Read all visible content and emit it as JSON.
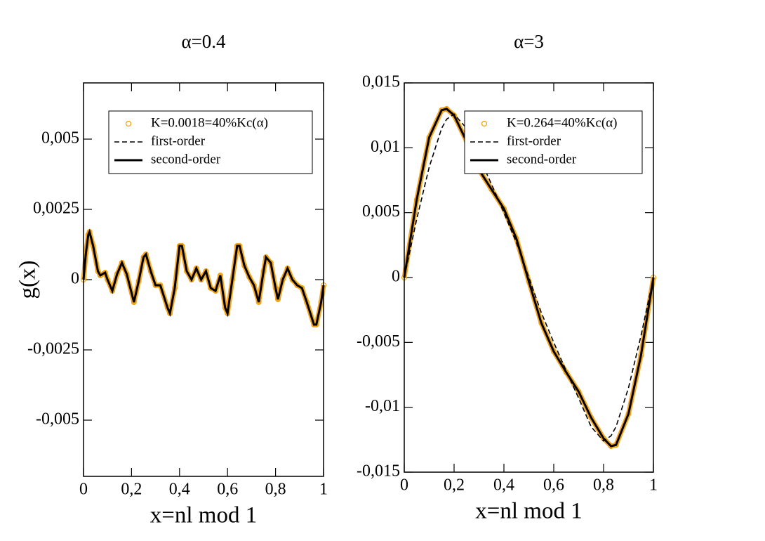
{
  "chart_data": [
    {
      "type": "line",
      "title": "α=0.4",
      "xlabel": "x=nl mod 1",
      "ylabel": "g(x)",
      "legend": "upper right",
      "x": [
        0,
        0.01,
        0.02,
        0.025,
        0.04,
        0.06,
        0.07,
        0.09,
        0.1,
        0.12,
        0.14,
        0.16,
        0.18,
        0.21,
        0.23,
        0.25,
        0.26,
        0.28,
        0.3,
        0.32,
        0.35,
        0.36,
        0.38,
        0.4,
        0.41,
        0.43,
        0.45,
        0.47,
        0.49,
        0.51,
        0.53,
        0.55,
        0.57,
        0.59,
        0.6,
        0.62,
        0.64,
        0.65,
        0.67,
        0.69,
        0.71,
        0.73,
        0.75,
        0.76,
        0.78,
        0.8,
        0.81,
        0.83,
        0.85,
        0.87,
        0.89,
        0.91,
        0.93,
        0.96,
        0.97,
        0.99,
        1
      ],
      "series": [
        {
          "name": "K=0.0018=40%Kc(α)",
          "color": "#f5a623",
          "style": "circle",
          "values": [
            0,
            0.00095,
            0.0016,
            0.0017,
            0.0012,
            0.0003,
            0.00015,
            0.00025,
            0,
            -0.0004,
            0.0002,
            0.0006,
            0.0002,
            -0.0008,
            -5e-05,
            0.0008,
            0.0009,
            0.0003,
            -0.0002,
            -0.0002,
            -0.001,
            -0.0012,
            -0.0003,
            0.0012,
            0.0012,
            0.0003,
            0,
            0.0004,
            0,
            0.0003,
            -0.0003,
            -0.0004,
            0.00015,
            -0.001,
            -0.0012,
            0,
            0.0012,
            0.0012,
            0.0005,
            0.0001,
            -0.0002,
            -0.0008,
            0.0003,
            0.0008,
            0.0006,
            -0.0003,
            -0.0007,
            0,
            0.0004,
            0,
            -0.0002,
            -0.0003,
            -0.0008,
            -0.0016,
            -0.0016,
            -0.0008,
            -0.0002
          ]
        },
        {
          "name": "first-order",
          "color": "#000000",
          "style": "dashed",
          "values": [
            0,
            0.00095,
            0.0016,
            0.0017,
            0.0012,
            0.0003,
            0.00015,
            0.00025,
            0,
            -0.0004,
            0.0002,
            0.0006,
            0.0002,
            -0.0008,
            -5e-05,
            0.0008,
            0.0009,
            0.0003,
            -0.0002,
            -0.0002,
            -0.001,
            -0.0012,
            -0.0003,
            0.0012,
            0.0012,
            0.0003,
            0,
            0.0004,
            0,
            0.0003,
            -0.0003,
            -0.0004,
            0.00015,
            -0.001,
            -0.0012,
            0,
            0.0012,
            0.0012,
            0.0005,
            0.0001,
            -0.0002,
            -0.0008,
            0.0003,
            0.0008,
            0.0006,
            -0.0003,
            -0.0007,
            0,
            0.0004,
            0,
            -0.0002,
            -0.0003,
            -0.0008,
            -0.0016,
            -0.0016,
            -0.0008,
            -0.0002
          ]
        },
        {
          "name": "second-order",
          "color": "#000000",
          "style": "solid",
          "values": [
            0,
            0.00095,
            0.0016,
            0.0017,
            0.0012,
            0.0003,
            0.00015,
            0.00025,
            0,
            -0.0004,
            0.0002,
            0.0006,
            0.0002,
            -0.0008,
            -5e-05,
            0.0008,
            0.0009,
            0.0003,
            -0.0002,
            -0.0002,
            -0.001,
            -0.0012,
            -0.0003,
            0.0012,
            0.0012,
            0.0003,
            0,
            0.0004,
            0,
            0.0003,
            -0.0003,
            -0.0004,
            0.00015,
            -0.001,
            -0.0012,
            0,
            0.0012,
            0.0012,
            0.0005,
            0.0001,
            -0.0002,
            -0.0008,
            0.0003,
            0.0008,
            0.0006,
            -0.0003,
            -0.0007,
            0,
            0.0004,
            0,
            -0.0002,
            -0.0003,
            -0.0008,
            -0.0016,
            -0.0016,
            -0.0008,
            -0.0002
          ]
        }
      ],
      "xlim": [
        0,
        1
      ],
      "xticks": [
        0,
        {
          "value": 0.2,
          "label": "0,2"
        },
        {
          "value": 0.4,
          "label": "0,4"
        },
        {
          "value": 0.6,
          "label": "0,6"
        },
        {
          "value": 0.8,
          "label": "0,8"
        },
        1
      ],
      "ylim": [
        -0.007,
        0.007
      ],
      "yticks": [
        {
          "value": -0.005,
          "label": "-0,005"
        },
        {
          "value": -0.0025,
          "label": "-0,0025"
        },
        0,
        {
          "value": 0.0025,
          "label": "0,0025"
        },
        {
          "value": 0.005,
          "label": "0,005"
        }
      ]
    },
    {
      "type": "line",
      "title": "α=3",
      "xlabel": "x=nl mod 1",
      "legend": "upper right",
      "x": [
        0,
        0.05,
        0.1,
        0.15,
        0.17,
        0.2,
        0.25,
        0.3,
        0.35,
        0.4,
        0.45,
        0.5,
        0.55,
        0.6,
        0.65,
        0.7,
        0.75,
        0.8,
        0.83,
        0.85,
        0.9,
        0.95,
        1
      ],
      "series": [
        {
          "name": "K=0.264=40%Kc(α)",
          "color": "#f5a623",
          "style": "circle",
          "values": [
            0,
            0.006,
            0.0108,
            0.0129,
            0.013,
            0.0125,
            0.0105,
            0.0083,
            0.0068,
            0.0053,
            0.003,
            -0.0003,
            -0.0035,
            -0.0057,
            -0.0073,
            -0.0088,
            -0.0108,
            -0.0124,
            -0.013,
            -0.0129,
            -0.0105,
            -0.006,
            0
          ]
        },
        {
          "name": "first-order",
          "color": "#000000",
          "style": "dashed",
          "values": [
            0,
            0.0045,
            0.0085,
            0.0115,
            0.0122,
            0.0126,
            0.0115,
            0.0093,
            0.0072,
            0.005,
            0.0027,
            0,
            -0.0027,
            -0.005,
            -0.0072,
            -0.0093,
            -0.0115,
            -0.0126,
            -0.0122,
            -0.0115,
            -0.0085,
            -0.0045,
            0
          ]
        },
        {
          "name": "second-order",
          "color": "#000000",
          "style": "solid",
          "values": [
            0,
            0.006,
            0.0108,
            0.0129,
            0.013,
            0.0125,
            0.0105,
            0.0083,
            0.0068,
            0.0053,
            0.003,
            -0.0003,
            -0.0035,
            -0.0057,
            -0.0073,
            -0.0088,
            -0.0108,
            -0.0124,
            -0.013,
            -0.0129,
            -0.0105,
            -0.006,
            0
          ]
        }
      ],
      "xlim": [
        0,
        1
      ],
      "xticks": [
        0,
        {
          "value": 0.2,
          "label": "0,2"
        },
        {
          "value": 0.4,
          "label": "0,4"
        },
        {
          "value": 0.6,
          "label": "0,6"
        },
        {
          "value": 0.8,
          "label": "0,8"
        },
        1
      ],
      "ylim": [
        -0.015,
        0.015
      ],
      "yticks": [
        {
          "value": -0.015,
          "label": "-0,015"
        },
        {
          "value": -0.01,
          "label": "-0,01"
        },
        {
          "value": -0.005,
          "label": "-0,005"
        },
        0,
        {
          "value": 0.005,
          "label": "0,005"
        },
        {
          "value": 0.01,
          "label": "0,01"
        },
        {
          "value": 0.015,
          "label": "0,015"
        }
      ]
    }
  ]
}
